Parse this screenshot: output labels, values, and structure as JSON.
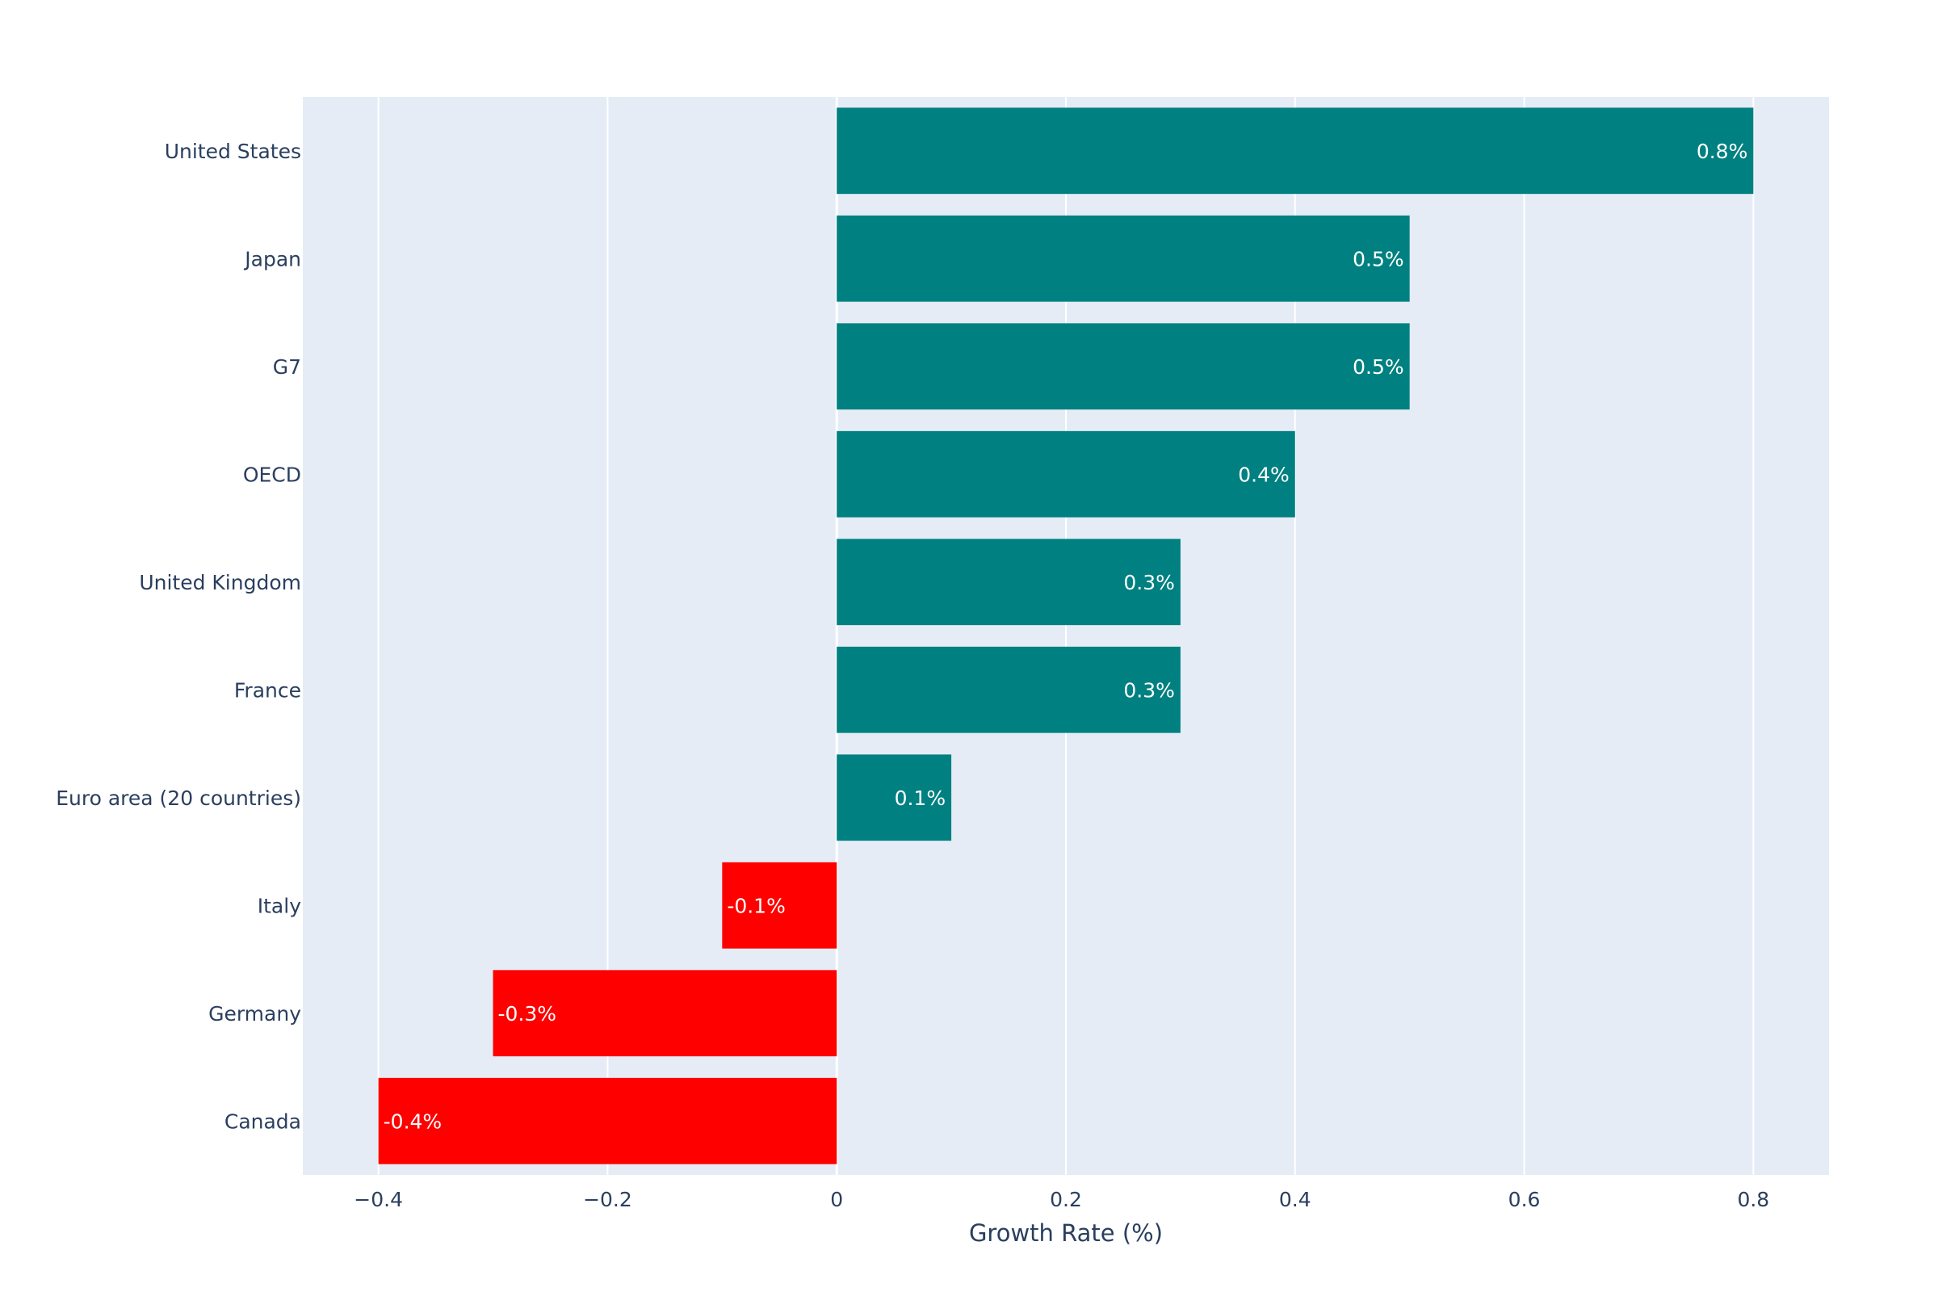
{
  "chart_data": {
    "type": "bar",
    "orientation": "horizontal",
    "categories": [
      "United States",
      "Japan",
      "G7",
      "OECD",
      "United Kingdom",
      "France",
      "Euro area (20 countries)",
      "Italy",
      "Germany",
      "Canada"
    ],
    "values": [
      0.8,
      0.5,
      0.5,
      0.4,
      0.3,
      0.3,
      0.1,
      -0.1,
      -0.3,
      -0.4
    ],
    "labels": [
      "0.8%",
      "0.5%",
      "0.5%",
      "0.4%",
      "0.3%",
      "0.3%",
      "0.1%",
      "-0.1%",
      "-0.3%",
      "-0.4%"
    ],
    "xlabel": "Growth Rate (%)",
    "ylabel": "",
    "xlim": [
      -0.466,
      0.866
    ],
    "x_ticks": [
      -0.4,
      -0.2,
      0,
      0.2,
      0.4,
      0.6,
      0.8
    ],
    "x_tick_labels": [
      "−0.4",
      "−0.2",
      "0",
      "0.2",
      "0.4",
      "0.6",
      "0.8"
    ],
    "grid": true,
    "colors": {
      "positive": "#008080",
      "negative": "#ff0000",
      "plot_background": "#e5ecf6",
      "grid": "#ffffff",
      "text": "#2a3f5f",
      "label_text": "#ffffff"
    }
  }
}
